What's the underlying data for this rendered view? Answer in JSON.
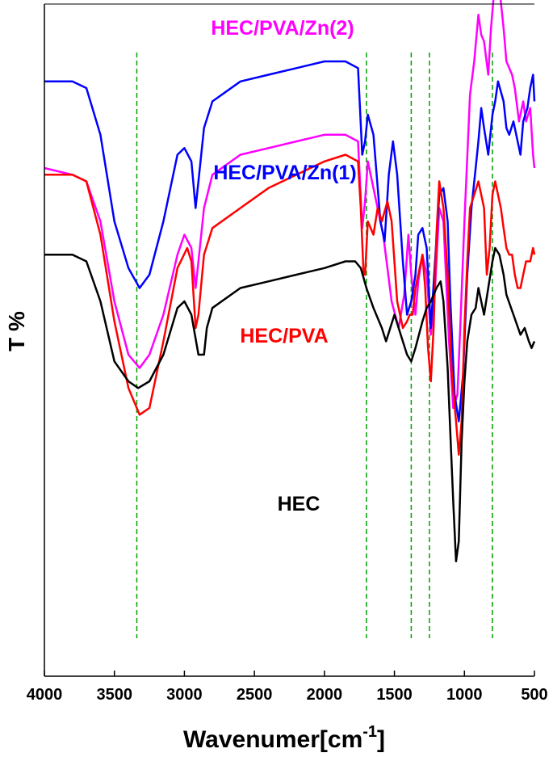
{
  "chart_data": {
    "type": "line",
    "xlabel": "Wavenumer[cm",
    "xlabel_sup": "-1",
    "xlabel_end": "]",
    "ylabel": "T %",
    "xlim": [
      4000,
      500
    ],
    "x_reversed": true,
    "y_ticks_shown": false,
    "x_ticks": [
      "4000",
      "3500",
      "3000",
      "2500",
      "2000",
      "1500",
      "1000",
      "500"
    ],
    "reference_lines_cm-1": [
      3340,
      1700,
      1380,
      1250,
      800
    ],
    "reference_line_color": "#00a000",
    "series": [
      {
        "name": "HEC/PVA/Zn(2)",
        "color": "#ff00ff",
        "points": [
          [
            4000,
            76
          ],
          [
            3800,
            75
          ],
          [
            3700,
            74
          ],
          [
            3600,
            68
          ],
          [
            3500,
            56
          ],
          [
            3400,
            48
          ],
          [
            3320,
            46
          ],
          [
            3250,
            48
          ],
          [
            3150,
            54
          ],
          [
            3050,
            63
          ],
          [
            3000,
            66
          ],
          [
            2950,
            64
          ],
          [
            2920,
            58
          ],
          [
            2900,
            62
          ],
          [
            2860,
            70
          ],
          [
            2800,
            75
          ],
          [
            2600,
            78
          ],
          [
            2400,
            79
          ],
          [
            2200,
            80
          ],
          [
            2000,
            81
          ],
          [
            1850,
            81
          ],
          [
            1760,
            80
          ],
          [
            1730,
            67
          ],
          [
            1710,
            71
          ],
          [
            1690,
            77
          ],
          [
            1640,
            72
          ],
          [
            1580,
            66
          ],
          [
            1520,
            56
          ],
          [
            1470,
            52
          ],
          [
            1430,
            57
          ],
          [
            1400,
            66
          ],
          [
            1380,
            60
          ],
          [
            1350,
            54
          ],
          [
            1330,
            59
          ],
          [
            1300,
            63
          ],
          [
            1270,
            60
          ],
          [
            1240,
            51
          ],
          [
            1210,
            58
          ],
          [
            1180,
            70
          ],
          [
            1150,
            68
          ],
          [
            1110,
            50
          ],
          [
            1080,
            40
          ],
          [
            1050,
            42
          ],
          [
            1030,
            52
          ],
          [
            1000,
            68
          ],
          [
            960,
            87
          ],
          [
            930,
            92
          ],
          [
            900,
            99
          ],
          [
            880,
            96
          ],
          [
            860,
            95
          ],
          [
            830,
            90
          ],
          [
            810,
            97
          ],
          [
            790,
            102
          ],
          [
            770,
            104
          ],
          [
            750,
            103
          ],
          [
            720,
            97
          ],
          [
            700,
            92
          ],
          [
            660,
            90
          ],
          [
            640,
            88
          ],
          [
            610,
            83
          ],
          [
            580,
            86
          ],
          [
            560,
            83
          ],
          [
            530,
            85
          ],
          [
            510,
            78
          ],
          [
            500,
            76
          ]
        ]
      },
      {
        "name": "HEC/PVA/Zn(1)",
        "color": "#0000ff",
        "points": [
          [
            4000,
            89
          ],
          [
            3800,
            89
          ],
          [
            3700,
            88
          ],
          [
            3600,
            81
          ],
          [
            3500,
            68
          ],
          [
            3400,
            61
          ],
          [
            3320,
            58
          ],
          [
            3250,
            60
          ],
          [
            3150,
            68
          ],
          [
            3050,
            78
          ],
          [
            3000,
            79
          ],
          [
            2950,
            77
          ],
          [
            2920,
            70
          ],
          [
            2900,
            74
          ],
          [
            2860,
            82
          ],
          [
            2800,
            86
          ],
          [
            2600,
            89
          ],
          [
            2400,
            90
          ],
          [
            2200,
            91
          ],
          [
            2000,
            92
          ],
          [
            1850,
            92
          ],
          [
            1760,
            91
          ],
          [
            1730,
            78
          ],
          [
            1710,
            80
          ],
          [
            1690,
            84
          ],
          [
            1650,
            81
          ],
          [
            1600,
            68
          ],
          [
            1570,
            65
          ],
          [
            1540,
            75
          ],
          [
            1510,
            80
          ],
          [
            1480,
            75
          ],
          [
            1440,
            62
          ],
          [
            1410,
            54
          ],
          [
            1380,
            56
          ],
          [
            1350,
            60
          ],
          [
            1330,
            66
          ],
          [
            1300,
            67
          ],
          [
            1270,
            64
          ],
          [
            1240,
            52
          ],
          [
            1210,
            62
          ],
          [
            1180,
            72
          ],
          [
            1150,
            73
          ],
          [
            1120,
            68
          ],
          [
            1100,
            56
          ],
          [
            1070,
            42
          ],
          [
            1040,
            38
          ],
          [
            1010,
            45
          ],
          [
            980,
            60
          ],
          [
            950,
            70
          ],
          [
            920,
            76
          ],
          [
            900,
            80
          ],
          [
            880,
            85
          ],
          [
            860,
            82
          ],
          [
            830,
            78
          ],
          [
            800,
            84
          ],
          [
            780,
            86
          ],
          [
            760,
            89
          ],
          [
            720,
            86
          ],
          [
            700,
            82
          ],
          [
            680,
            81
          ],
          [
            650,
            83
          ],
          [
            620,
            80
          ],
          [
            600,
            78
          ],
          [
            580,
            83
          ],
          [
            550,
            85
          ],
          [
            530,
            88
          ],
          [
            510,
            90
          ],
          [
            500,
            86
          ]
        ]
      },
      {
        "name": "HEC/PVA",
        "color": "#ff0000",
        "points": [
          [
            4000,
            75
          ],
          [
            3800,
            75
          ],
          [
            3700,
            74
          ],
          [
            3600,
            66
          ],
          [
            3500,
            53
          ],
          [
            3400,
            43
          ],
          [
            3320,
            39
          ],
          [
            3250,
            40
          ],
          [
            3150,
            50
          ],
          [
            3050,
            61
          ],
          [
            2980,
            64
          ],
          [
            2950,
            62
          ],
          [
            2920,
            52
          ],
          [
            2900,
            54
          ],
          [
            2860,
            63
          ],
          [
            2800,
            67
          ],
          [
            2600,
            70
          ],
          [
            2400,
            73
          ],
          [
            2200,
            75
          ],
          [
            2000,
            77
          ],
          [
            1850,
            78
          ],
          [
            1760,
            77
          ],
          [
            1740,
            70
          ],
          [
            1720,
            60
          ],
          [
            1710,
            60
          ],
          [
            1690,
            68
          ],
          [
            1650,
            66
          ],
          [
            1620,
            70
          ],
          [
            1590,
            68
          ],
          [
            1550,
            71
          ],
          [
            1520,
            68
          ],
          [
            1480,
            56
          ],
          [
            1440,
            52
          ],
          [
            1410,
            53
          ],
          [
            1390,
            54
          ],
          [
            1370,
            54
          ],
          [
            1350,
            58
          ],
          [
            1330,
            60
          ],
          [
            1300,
            63
          ],
          [
            1280,
            58
          ],
          [
            1260,
            49
          ],
          [
            1240,
            44
          ],
          [
            1220,
            52
          ],
          [
            1200,
            66
          ],
          [
            1180,
            74
          ],
          [
            1150,
            70
          ],
          [
            1120,
            60
          ],
          [
            1090,
            45
          ],
          [
            1060,
            38
          ],
          [
            1040,
            33
          ],
          [
            1020,
            38
          ],
          [
            1000,
            52
          ],
          [
            980,
            62
          ],
          [
            960,
            70
          ],
          [
            930,
            72
          ],
          [
            900,
            74
          ],
          [
            880,
            72
          ],
          [
            860,
            70
          ],
          [
            840,
            60
          ],
          [
            820,
            64
          ],
          [
            800,
            72
          ],
          [
            780,
            74
          ],
          [
            760,
            72
          ],
          [
            740,
            70
          ],
          [
            720,
            67
          ],
          [
            700,
            64
          ],
          [
            680,
            63
          ],
          [
            660,
            63
          ],
          [
            640,
            60
          ],
          [
            620,
            58
          ],
          [
            600,
            58
          ],
          [
            580,
            60
          ],
          [
            560,
            62
          ],
          [
            530,
            62
          ],
          [
            510,
            64
          ],
          [
            500,
            63
          ]
        ]
      },
      {
        "name": "HEC",
        "color": "#000000",
        "points": [
          [
            4000,
            63
          ],
          [
            3800,
            63
          ],
          [
            3700,
            62
          ],
          [
            3600,
            56
          ],
          [
            3500,
            47
          ],
          [
            3400,
            44
          ],
          [
            3330,
            43
          ],
          [
            3250,
            44
          ],
          [
            3150,
            48
          ],
          [
            3050,
            55
          ],
          [
            3000,
            56
          ],
          [
            2950,
            54
          ],
          [
            2900,
            48
          ],
          [
            2860,
            48
          ],
          [
            2840,
            52
          ],
          [
            2800,
            55
          ],
          [
            2600,
            58
          ],
          [
            2400,
            59
          ],
          [
            2200,
            60
          ],
          [
            2000,
            61
          ],
          [
            1850,
            62
          ],
          [
            1780,
            62
          ],
          [
            1740,
            61
          ],
          [
            1700,
            58
          ],
          [
            1650,
            55
          ],
          [
            1590,
            52
          ],
          [
            1560,
            50
          ],
          [
            1530,
            52
          ],
          [
            1500,
            54
          ],
          [
            1470,
            52
          ],
          [
            1440,
            50
          ],
          [
            1410,
            48
          ],
          [
            1380,
            47
          ],
          [
            1350,
            49
          ],
          [
            1300,
            53
          ],
          [
            1270,
            55
          ],
          [
            1240,
            56
          ],
          [
            1200,
            58
          ],
          [
            1170,
            59
          ],
          [
            1150,
            56
          ],
          [
            1120,
            46
          ],
          [
            1100,
            36
          ],
          [
            1080,
            26
          ],
          [
            1060,
            17
          ],
          [
            1040,
            20
          ],
          [
            1020,
            35
          ],
          [
            1000,
            44
          ],
          [
            980,
            50
          ],
          [
            950,
            54
          ],
          [
            920,
            55
          ],
          [
            900,
            58
          ],
          [
            880,
            56
          ],
          [
            860,
            54
          ],
          [
            830,
            58
          ],
          [
            800,
            62
          ],
          [
            780,
            64
          ],
          [
            750,
            63
          ],
          [
            720,
            60
          ],
          [
            700,
            57
          ],
          [
            650,
            54
          ],
          [
            600,
            51
          ],
          [
            570,
            52
          ],
          [
            540,
            50
          ],
          [
            520,
            49
          ],
          [
            500,
            50
          ]
        ]
      }
    ]
  }
}
